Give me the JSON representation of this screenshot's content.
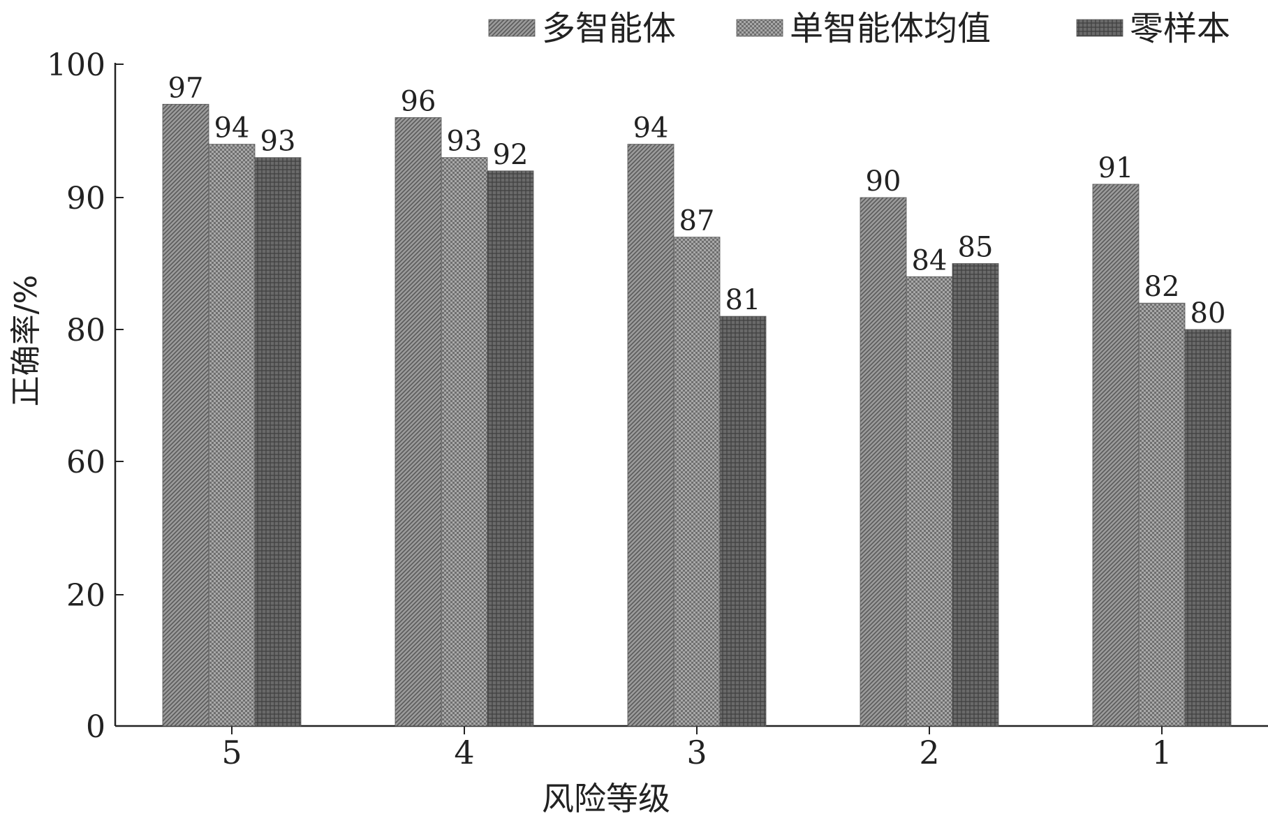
{
  "chart_data": {
    "type": "bar",
    "title": "",
    "xlabel": "风险等级",
    "ylabel": "正确率/%",
    "categories": [
      "5",
      "4",
      "3",
      "2",
      "1"
    ],
    "series": [
      {
        "name": "多智能体",
        "values": [
          97,
          96,
          94,
          90,
          91
        ],
        "color": "#8f8f8f",
        "pattern": "diagonal-hatch"
      },
      {
        "name": "单智能体均值",
        "values": [
          94,
          93,
          87,
          84,
          82
        ],
        "color": "#9a9a9a",
        "pattern": "checker"
      },
      {
        "name": "零样本",
        "values": [
          93,
          92,
          81,
          85,
          80
        ],
        "color": "#6a6a6a",
        "pattern": "crosshatch-dark"
      }
    ],
    "yticks": [
      "0",
      "20",
      "60",
      "80",
      "90",
      "100"
    ],
    "ytick_values": [
      0,
      20,
      60,
      80,
      90,
      100
    ],
    "axis_break": "broken y-axis: 0–60 linear spacing of 20, then 60–100 expanded",
    "legend_position": "top-right",
    "data_labels": true,
    "grid": false
  }
}
